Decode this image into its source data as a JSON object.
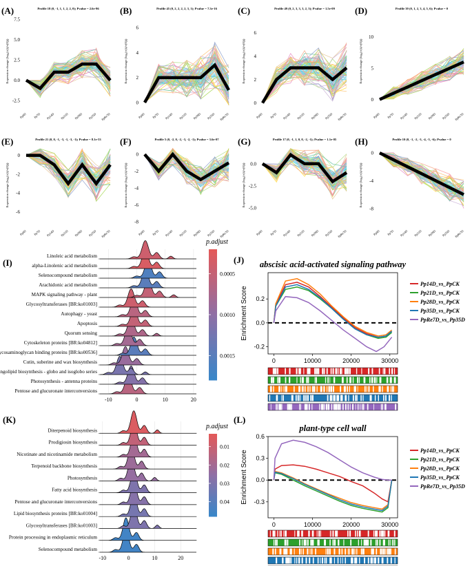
{
  "ts_panels": [
    {
      "label": "(A)",
      "title": "Profile 18 (0, -1, 1, 1, 2, 2, 0); Pvalue = 2.6e-96",
      "ylabel": "Expression change (log₂(v(i)/v(0)))",
      "xticks": [
        "Pp0D",
        "Pp7D",
        "Pp14D",
        "Pp21D",
        "Pp28D",
        "Pp35D",
        "PpRe7D"
      ],
      "yticks": [
        "-2.5",
        "0.0",
        "2.5",
        "5.0",
        "7.5"
      ],
      "ymin": -3.5,
      "ymax": 8,
      "profile": [
        0,
        -1,
        1,
        1,
        2,
        2,
        0
      ]
    },
    {
      "label": "(B)",
      "title": "Profile 45 (0, 2, 2, 2, 2, 3, 1); Pvalue = 7.3e-16",
      "ylabel": "Expression change (log₂(v(i)/v(0)))",
      "xticks": [
        "Pp0D",
        "Pp7D",
        "Pp14D",
        "Pp21D",
        "Pp28D",
        "Pp35D",
        "PpRe7D"
      ],
      "yticks": [
        "0",
        "2",
        "4",
        "6"
      ],
      "ymin": -0.5,
      "ymax": 7,
      "profile": [
        0,
        2,
        2,
        2,
        2,
        3,
        1
      ]
    },
    {
      "label": "(C)",
      "title": "Profile 49 (0, 2, 3, 3, 3, 2, 3); Pvalue = 1.5e-09",
      "ylabel": "Expression change (log₂(v(i)/v(0)))",
      "xticks": [
        "Pp0D",
        "Pp7D",
        "Pp14D",
        "Pp21D",
        "Pp28D",
        "Pp35D",
        "PpRe7D"
      ],
      "yticks": [
        "0",
        "2",
        "4",
        "6"
      ],
      "ymin": -0.5,
      "ymax": 7.5,
      "profile": [
        0,
        2,
        3,
        3,
        3,
        2,
        3
      ]
    },
    {
      "label": "(D)",
      "title": "Profile 39 (0, 1, 2, 3, 4, 5, 6); Pvalue = 0",
      "ylabel": "Expression change (log₂(v(i)/v(0)))",
      "xticks": [
        "Pp0D",
        "Pp7D",
        "Pp14D",
        "Pp21D",
        "Pp28D",
        "Pp35D",
        "PpRe7D"
      ],
      "yticks": [
        "0",
        "5",
        "10"
      ],
      "ymin": -1.5,
      "ymax": 13.5,
      "profile": [
        0,
        1,
        2,
        3,
        4,
        5,
        6
      ]
    },
    {
      "label": "(E)",
      "title": "Profile 21 (0, 0, -1, -3, -1, -3, -1); Pvalue = 8.1e-53",
      "ylabel": "Expression change (log₂(v(i)/v(0)))",
      "xticks": [
        "Pp0D",
        "Pp7D",
        "Pp14D",
        "Pp21D",
        "Pp28D",
        "Pp35D",
        "PpRe7D"
      ],
      "yticks": [
        "0",
        "-2",
        "-4",
        "-6"
      ],
      "ymin": -7.5,
      "ymax": 1,
      "profile": [
        0,
        0,
        -1,
        -3,
        -1,
        -3,
        -1
      ]
    },
    {
      "label": "(F)",
      "title": "Profile 5 (0, -2, 0, -2, -3, -2, -1); Pvalue = 3.6e-07",
      "ylabel": "Expression change (log₂(v(i)/v(0)))",
      "xticks": [
        "Pp0D",
        "Pp7D",
        "Pp14D",
        "Pp21D",
        "Pp28D",
        "Pp35D",
        "PpRe7D"
      ],
      "yticks": [
        "0",
        "-2",
        "-4",
        "-6",
        "-8"
      ],
      "ymin": -8.5,
      "ymax": 1,
      "profile": [
        0,
        -2,
        0,
        -2,
        -3,
        -2,
        -1
      ]
    },
    {
      "label": "(G)",
      "title": "Profile 17 (0, -1, 1, 0, 0, -2, -1); Pvalue = 1.1e-05",
      "ylabel": "Expression change (log₂(v(i)/v(0)))",
      "xticks": [
        "Pp0D",
        "Pp7D",
        "Pp14D",
        "Pp21D",
        "Pp28D",
        "Pp35D",
        "PpRe7D"
      ],
      "yticks": [
        "0.0",
        "-2.5",
        "-5.0"
      ],
      "ymin": -7,
      "ymax": 2,
      "profile": [
        0,
        -1,
        1,
        0,
        0,
        -2,
        -1
      ]
    },
    {
      "label": "(H)",
      "title": "Profile 10 (0, -1, -2, -3, -4, -5, -6); Pvalue = 0",
      "ylabel": "Expression change (log₂(v(i)/v(0)))",
      "xticks": [
        "Pp0D",
        "Pp7D",
        "Pp14D",
        "Pp21D",
        "Pp28D",
        "Pp35D",
        "PpRe7D"
      ],
      "yticks": [
        "0",
        "-4",
        "-8"
      ],
      "ymin": -10.5,
      "ymax": 1,
      "profile": [
        0,
        -1,
        -2,
        -3,
        -4,
        -5,
        -6
      ]
    }
  ],
  "chart_data": [
    {
      "type": "ridgeline",
      "panel": "(I)",
      "categories": [
        "Linoleic acid metabolism",
        "alpha-Linolenic acid metabolism",
        "Selenocompound metabolism",
        "Arachidonic acid metabolism",
        "MAPK signaling pathway - plant",
        "Glycosyltransferases [BR:ko01003]",
        "Autophagy - yeast",
        "Apoptosis",
        "Quorum sensing",
        "Cytoskeleton proteins [BR:ko04812]",
        "Glycosaminoglycan binding proteins [BR:ko00536]",
        "Cutin, suberine and wax biosynthesis",
        "Glycosphingolipid biosynthesis - globo and isoglobo series",
        "Photosynthesis - antenna proteins",
        "Pentose and glucuronate interconversions"
      ],
      "peaks": [
        3,
        3,
        4,
        3,
        4,
        -2,
        -1,
        -1,
        -2,
        -3,
        -1,
        -4,
        -6,
        -2,
        -3
      ],
      "padjust": [
        0.0004,
        0.0003,
        0.0016,
        0.0015,
        0.0005,
        0.0004,
        0.0006,
        0.0005,
        0.0007,
        0.0008,
        0.0015,
        0.0009,
        0.0012,
        0.0011,
        0.0006
      ],
      "xticks": [
        "-10",
        "0",
        "10",
        "20"
      ],
      "xlim": [
        -13,
        21
      ],
      "legend_title": "p.adjust",
      "legend_ticks": [
        "0.0005",
        "0.0010",
        "0.0015"
      ],
      "legend_range": [
        0.0002,
        0.0018
      ]
    },
    {
      "type": "gsea_line",
      "panel": "(J)",
      "title": "abscisic acid-activated signaling pathway",
      "ylabel": "Enrichment Score",
      "xticks": [
        "0",
        "10000",
        "20000",
        "30000"
      ],
      "yticks": [
        "0.2",
        "0.0",
        "-0.2"
      ],
      "xlim": [
        -1500,
        32000
      ],
      "ylim": [
        -0.26,
        0.42
      ],
      "series": [
        {
          "name": "Pp14D_vs_PpCK",
          "color": "#d62728",
          "x": [
            0,
            500,
            3000,
            6000,
            9000,
            12000,
            15000,
            18000,
            21000,
            24000,
            27000,
            29000,
            30500
          ],
          "y": [
            0,
            0.15,
            0.32,
            0.34,
            0.3,
            0.22,
            0.13,
            0.04,
            -0.04,
            -0.09,
            -0.12,
            -0.11,
            -0.07
          ]
        },
        {
          "name": "Pp21D_vs_PpCK",
          "color": "#2ca02c",
          "x": [
            0,
            500,
            3000,
            6000,
            9000,
            12000,
            15000,
            18000,
            21000,
            24000,
            27000,
            29000,
            30500
          ],
          "y": [
            0,
            0.14,
            0.28,
            0.3,
            0.27,
            0.2,
            0.12,
            0.03,
            -0.05,
            -0.1,
            -0.13,
            -0.12,
            -0.08
          ]
        },
        {
          "name": "Pp28D_vs_PpCK",
          "color": "#ff7f0e",
          "x": [
            0,
            500,
            3000,
            6000,
            9000,
            12000,
            15000,
            18000,
            21000,
            24000,
            27000,
            29000,
            30500
          ],
          "y": [
            0,
            0.16,
            0.35,
            0.37,
            0.32,
            0.24,
            0.14,
            0.05,
            -0.03,
            -0.08,
            -0.11,
            -0.1,
            -0.06
          ]
        },
        {
          "name": "Pp35D_vs_PpCK",
          "color": "#1f77b4",
          "x": [
            0,
            500,
            3000,
            6000,
            9000,
            12000,
            15000,
            18000,
            21000,
            24000,
            27000,
            29000,
            30500
          ],
          "y": [
            0,
            0.14,
            0.3,
            0.32,
            0.28,
            0.21,
            0.12,
            0.03,
            -0.05,
            -0.1,
            -0.12,
            -0.11,
            -0.07
          ]
        },
        {
          "name": "PpRe7D_vs_Pp35D",
          "color": "#9467bd",
          "x": [
            0,
            500,
            3000,
            6000,
            9000,
            12000,
            15000,
            18000,
            21000,
            24000,
            26500,
            28500,
            30500
          ],
          "y": [
            0,
            0.1,
            0.22,
            0.21,
            0.17,
            0.1,
            0.02,
            -0.06,
            -0.13,
            -0.2,
            -0.24,
            -0.2,
            -0.12
          ]
        }
      ]
    },
    {
      "type": "ridgeline",
      "panel": "(K)",
      "categories": [
        "Diterpenoid biosynthesis",
        "Prodigiosin biosynthesis",
        "Nicotinate and nicotinamide metabolism",
        "Terpenoid backbone biosynthesis",
        "Photosynthesis",
        "Fatty acid biosynthesis",
        "Pentose and glucuronate interconversions",
        "Lipid biosynthesis proteins [BR:ko01004]",
        "Glycosyltransferases [BR:ko01003]",
        "Protein processing in endoplasmic reticulum",
        "Selenocompound metabolism"
      ],
      "peaks": [
        2,
        2,
        2,
        1,
        1,
        2,
        2,
        2,
        2,
        -1,
        -1
      ],
      "padjust": [
        0.005,
        0.012,
        0.02,
        0.022,
        0.024,
        0.03,
        0.028,
        0.032,
        0.03,
        0.046,
        0.046
      ],
      "xticks": [
        "-10",
        "0",
        "10",
        "20"
      ],
      "xlim": [
        -11,
        26
      ],
      "legend_title": "p.adjust",
      "legend_ticks": [
        "0.01",
        "0.02",
        "0.03",
        "0.04"
      ],
      "legend_range": [
        0.003,
        0.048
      ]
    },
    {
      "type": "gsea_line",
      "panel": "(L)",
      "title": "plant-type cell wall",
      "ylabel": "Enrichment Score",
      "xticks": [
        "0",
        "10000",
        "20000",
        "30000"
      ],
      "yticks": [
        "0.6",
        "0.3",
        "0.0",
        "-0.3"
      ],
      "xlim": [
        -1500,
        32000
      ],
      "ylim": [
        -0.52,
        0.6
      ],
      "series": [
        {
          "name": "Pp14D_vs_PpCK",
          "color": "#d62728",
          "x": [
            0,
            300,
            2000,
            5000,
            8000,
            11000,
            14000,
            17000,
            20000,
            23000,
            26000,
            28000,
            29500,
            30500
          ],
          "y": [
            0,
            0.15,
            0.2,
            0.21,
            0.19,
            0.15,
            0.1,
            0.05,
            -0.02,
            -0.08,
            -0.18,
            -0.26,
            -0.3,
            0
          ]
        },
        {
          "name": "Pp21D_vs_PpCK",
          "color": "#2ca02c",
          "x": [
            0,
            300,
            2000,
            5000,
            8000,
            11000,
            14000,
            17000,
            20000,
            23000,
            26000,
            28000,
            29500,
            30500
          ],
          "y": [
            0,
            0.1,
            0.08,
            0.0,
            -0.08,
            -0.15,
            -0.22,
            -0.29,
            -0.35,
            -0.39,
            -0.42,
            -0.44,
            -0.38,
            0
          ]
        },
        {
          "name": "Pp28D_vs_PpCK",
          "color": "#ff7f0e",
          "x": [
            0,
            300,
            2000,
            5000,
            8000,
            11000,
            14000,
            17000,
            20000,
            23000,
            26000,
            28000,
            29500,
            30500
          ],
          "y": [
            0,
            0.12,
            0.1,
            0.03,
            -0.05,
            -0.12,
            -0.19,
            -0.25,
            -0.31,
            -0.35,
            -0.38,
            -0.4,
            -0.34,
            0
          ]
        },
        {
          "name": "Pp35D_vs_PpCK",
          "color": "#1f77b4",
          "x": [
            0,
            300,
            2000,
            5000,
            8000,
            11000,
            14000,
            17000,
            20000,
            23000,
            26000,
            28000,
            29500,
            30500
          ],
          "y": [
            0,
            0.11,
            0.09,
            0.02,
            -0.06,
            -0.13,
            -0.2,
            -0.27,
            -0.33,
            -0.37,
            -0.4,
            -0.42,
            -0.36,
            0
          ]
        },
        {
          "name": "PpRe7D_vs_Pp35D",
          "color": "#9467bd",
          "x": [
            0,
            300,
            2000,
            5000,
            8000,
            11000,
            14000,
            17000,
            20000,
            23000,
            26000,
            28000,
            29500,
            30500
          ],
          "y": [
            0,
            0.3,
            0.5,
            0.55,
            0.52,
            0.46,
            0.38,
            0.28,
            0.18,
            0.1,
            0.04,
            0.01,
            0,
            0
          ]
        }
      ]
    }
  ]
}
